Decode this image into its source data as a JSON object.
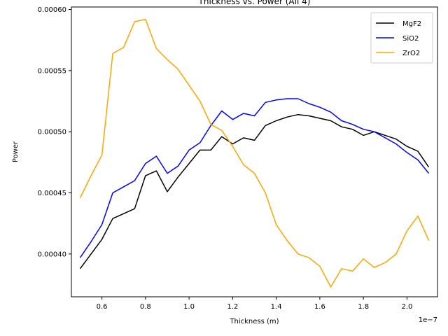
{
  "chart_data": {
    "type": "line",
    "title": "Thickness vs. Power (All 4)",
    "xlabel": "Thickness (m)",
    "ylabel": "Power",
    "x_offset_label": "1e−7",
    "xlim": [
      4.6e-08,
      2.14e-07
    ],
    "ylim": [
      0.000365,
      0.000602
    ],
    "x_ticks": [
      6e-08,
      8e-08,
      1e-07,
      1.2e-07,
      1.4e-07,
      1.6e-07,
      1.8e-07,
      2e-07
    ],
    "x_tick_labels": [
      "0.6",
      "0.8",
      "1.0",
      "1.2",
      "1.4",
      "1.6",
      "1.8",
      "2.0"
    ],
    "y_ticks": [
      0.0004,
      0.00045,
      0.0005,
      0.00055,
      0.0006
    ],
    "y_tick_labels": [
      "0.00040",
      "0.00045",
      "0.00050",
      "0.00055",
      "0.00060"
    ],
    "grid": false,
    "legend_position": "top-right",
    "x": [
      5e-08,
      5.5e-08,
      6e-08,
      6.5e-08,
      7e-08,
      7.5e-08,
      8e-08,
      8.5e-08,
      9e-08,
      9.5e-08,
      1e-07,
      1.05e-07,
      1.1e-07,
      1.15e-07,
      1.2e-07,
      1.25e-07,
      1.3e-07,
      1.35e-07,
      1.4e-07,
      1.45e-07,
      1.5e-07,
      1.55e-07,
      1.6e-07,
      1.65e-07,
      1.7e-07,
      1.75e-07,
      1.8e-07,
      1.85e-07,
      1.9e-07,
      1.95e-07,
      2e-07,
      2.05e-07,
      2.1e-07
    ],
    "series": [
      {
        "name": "MgF2",
        "color": "#000000",
        "values": [
          0.000388,
          0.0004,
          0.000412,
          0.000429,
          0.000433,
          0.000437,
          0.000464,
          0.000468,
          0.000451,
          0.000463,
          0.000474,
          0.000485,
          0.000485,
          0.000496,
          0.00049,
          0.000495,
          0.000493,
          0.000505,
          0.000509,
          0.000512,
          0.000514,
          0.000513,
          0.000511,
          0.000509,
          0.000504,
          0.000502,
          0.000497,
          0.0005,
          0.000497,
          0.000494,
          0.000488,
          0.000484,
          0.000471
        ]
      },
      {
        "name": "SiO2",
        "color": "#0000ff",
        "values": [
          0.000397,
          0.00041,
          0.000424,
          0.00045,
          0.000455,
          0.00046,
          0.000474,
          0.00048,
          0.000466,
          0.000472,
          0.000485,
          0.000491,
          0.000505,
          0.000517,
          0.00051,
          0.000515,
          0.000513,
          0.000524,
          0.000526,
          0.000527,
          0.000527,
          0.000523,
          0.00052,
          0.000516,
          0.000509,
          0.000506,
          0.000502,
          0.0005,
          0.000495,
          0.00049,
          0.000483,
          0.000477,
          0.000466
        ]
      },
      {
        "name": "ZrO2",
        "color": "#ffa500",
        "values": [
          0.000446,
          0.000464,
          0.000481,
          0.000564,
          0.000569,
          0.00059,
          0.000592,
          0.000568,
          0.000559,
          0.000551,
          0.000538,
          0.000525,
          0.000506,
          0.000501,
          0.000488,
          0.000473,
          0.000466,
          0.00045,
          0.000424,
          0.000411,
          0.0004,
          0.000397,
          0.00039,
          0.000373,
          0.000388,
          0.000386,
          0.000396,
          0.000389,
          0.000393,
          0.0004,
          0.000419,
          0.000431,
          0.000411
        ]
      }
    ]
  }
}
